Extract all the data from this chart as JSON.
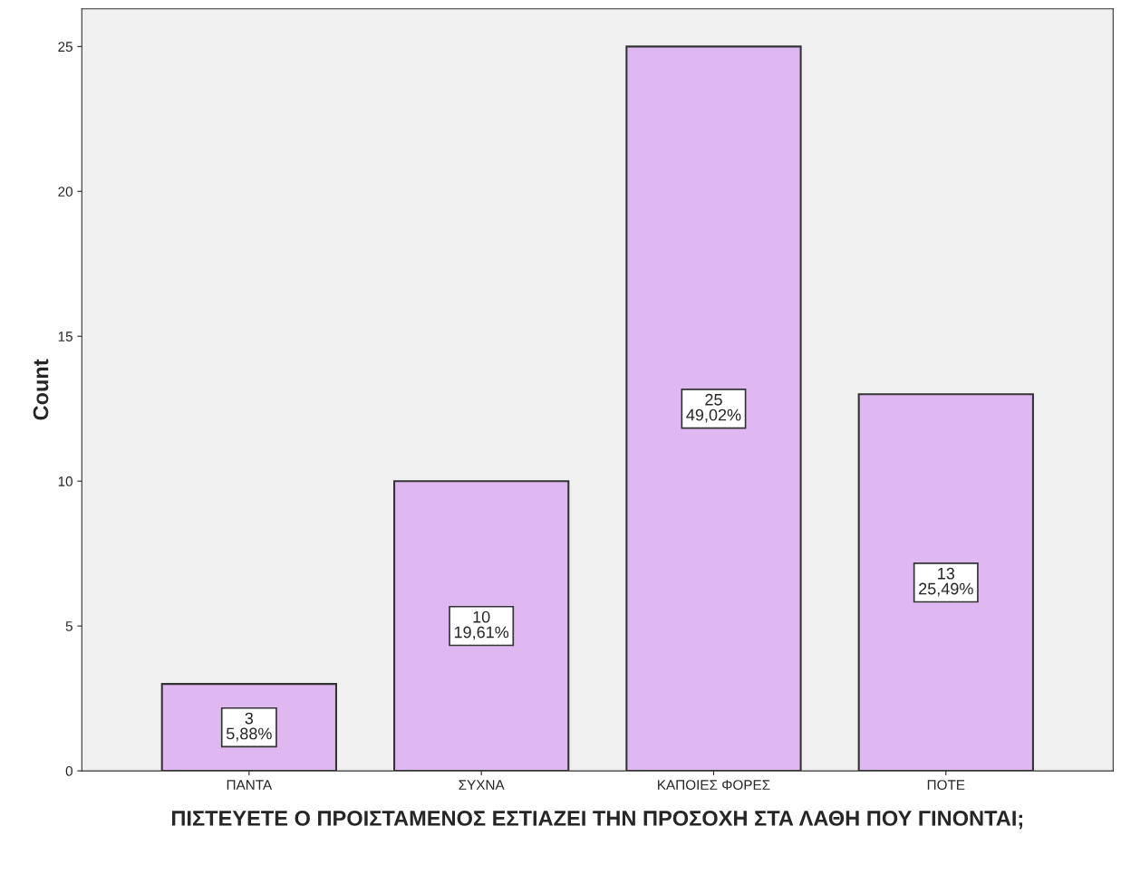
{
  "chart_data": {
    "type": "bar",
    "xlabel": "ΠΙΣΤΕΥΕΤΕ Ο ΠΡΟΙΣΤΑΜΕΝΟΣ ΕΣΤΙΑΖΕΙ ΤΗΝ ΠΡΟΣΟΧΗ ΣΤΑ ΛΑΘΗ ΠΟΥ ΓΙΝΟΝΤΑΙ;",
    "ylabel": "Count",
    "categories": [
      "ΠΑΝΤΑ",
      "ΣΥΧΝΑ",
      "ΚΑΠΟΙΕΣ ΦΟΡΕΣ",
      "ΠΟΤΕ"
    ],
    "values": [
      3,
      10,
      25,
      13
    ],
    "value_labels": [
      "3\n5,88%",
      "10\n19,61%",
      "25\n49,02%",
      "13\n25,49%"
    ],
    "color": "#dfb8f2",
    "ylim": [
      0,
      26.3
    ],
    "yticks": [
      0,
      5,
      10,
      15,
      20,
      25
    ],
    "grid": false,
    "legend": false
  }
}
